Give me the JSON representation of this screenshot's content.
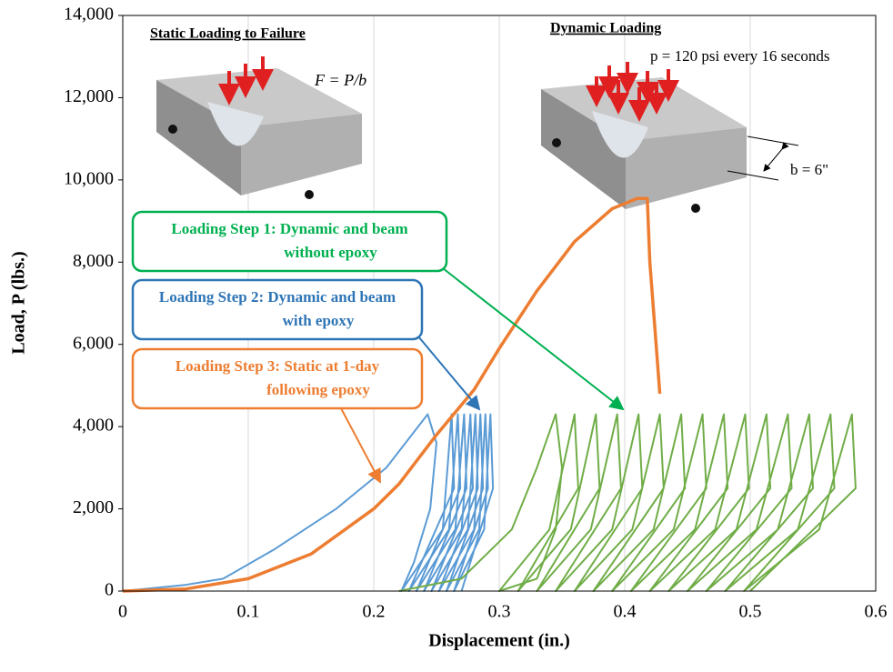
{
  "chart_data": {
    "type": "line",
    "xlabel": "Displacement (in.)",
    "ylabel": "Load, P (lbs.)",
    "xlim": [
      0,
      0.6
    ],
    "xticks": [
      0,
      0.1,
      0.2,
      0.3,
      0.4,
      0.5,
      0.6
    ],
    "ylim": [
      0,
      14000
    ],
    "yticks": [
      0,
      {
        "value": 2000,
        "label": "2,000"
      },
      {
        "value": 4000,
        "label": "4,000"
      },
      {
        "value": 6000,
        "label": "6,000"
      },
      {
        "value": 8000,
        "label": "8,000"
      },
      {
        "value": 10000,
        "label": "10,000"
      },
      {
        "value": 12000,
        "label": "12,000"
      },
      {
        "value": 14000,
        "label": "14,000"
      }
    ],
    "grid": "x",
    "series": [
      {
        "color": "#5b9bd5",
        "x": [
          0,
          0.05,
          0.08,
          0.12,
          0.17,
          0.21,
          0.243,
          0.25,
          0.245,
          0.232,
          0.222,
          0.255,
          0.262,
          0.264,
          0.228,
          0.26,
          0.267,
          0.269,
          0.234,
          0.265,
          0.272,
          0.274,
          0.24,
          0.27,
          0.277,
          0.279,
          0.246,
          0.275,
          0.281,
          0.283,
          0.252,
          0.28,
          0.285,
          0.287,
          0.258,
          0.284,
          0.289,
          0.291,
          0.264,
          0.288,
          0.293,
          0.295,
          0.27
        ],
        "values": [
          0,
          150,
          300,
          1000,
          2000,
          3000,
          4300,
          3600,
          2000,
          700,
          0,
          1500,
          4300,
          2500,
          0,
          1500,
          4300,
          2500,
          0,
          1500,
          4300,
          2500,
          0,
          1500,
          4300,
          2500,
          0,
          1500,
          4300,
          2500,
          0,
          1500,
          4300,
          2500,
          0,
          1500,
          4300,
          2500,
          0,
          1500,
          4300,
          2500,
          0
        ]
      },
      {
        "color": "#70ad47",
        "x": [
          0.22,
          0.27,
          0.31,
          0.33,
          0.345,
          0.35,
          0.345,
          0.33,
          0.3,
          0.34,
          0.36,
          0.363,
          0.315,
          0.357,
          0.377,
          0.38,
          0.33,
          0.373,
          0.394,
          0.397,
          0.345,
          0.39,
          0.411,
          0.414,
          0.36,
          0.406,
          0.428,
          0.431,
          0.375,
          0.423,
          0.445,
          0.448,
          0.39,
          0.439,
          0.462,
          0.465,
          0.405,
          0.456,
          0.479,
          0.482,
          0.42,
          0.472,
          0.496,
          0.499,
          0.435,
          0.489,
          0.513,
          0.516,
          0.45,
          0.505,
          0.53,
          0.533,
          0.465,
          0.522,
          0.547,
          0.55,
          0.48,
          0.538,
          0.564,
          0.567,
          0.495,
          0.555,
          0.581,
          0.584,
          0.5
        ],
        "values": [
          0,
          300,
          1500,
          3000,
          4300,
          3000,
          1500,
          300,
          0,
          1500,
          4300,
          2500,
          0,
          1500,
          4300,
          2500,
          0,
          1500,
          4300,
          2500,
          0,
          1500,
          4300,
          2500,
          0,
          1500,
          4300,
          2500,
          0,
          1500,
          4300,
          2500,
          0,
          1500,
          4300,
          2500,
          0,
          1500,
          4300,
          2500,
          0,
          1500,
          4300,
          2500,
          0,
          1500,
          4300,
          2500,
          0,
          1500,
          4300,
          2500,
          0,
          1500,
          4300,
          2500,
          0,
          1500,
          4300,
          2500,
          0,
          1500,
          4300,
          2500,
          0
        ]
      },
      {
        "color": "#ed7d31",
        "x": [
          0,
          0.05,
          0.1,
          0.15,
          0.2,
          0.22,
          0.25,
          0.28,
          0.3,
          0.33,
          0.36,
          0.39,
          0.41,
          0.418,
          0.42,
          0.425,
          0.428
        ],
        "values": [
          0,
          50,
          300,
          900,
          2000,
          2600,
          3800,
          4900,
          5900,
          7300,
          8500,
          9300,
          9550,
          9550,
          8000,
          6000,
          4800
        ]
      }
    ],
    "annotations": [
      {
        "lines": [
          "Loading Step 1: Dynamic and beam",
          "without epoxy"
        ],
        "color": "#00b050"
      },
      {
        "lines": [
          "Loading Step 2: Dynamic and beam",
          "with epoxy"
        ],
        "color": "#2e75b6"
      },
      {
        "lines": [
          "Loading Step 3: Static at 1-day",
          "following epoxy"
        ],
        "color": "#ed7d31"
      }
    ],
    "figure_labels": [
      "Static Loading to Failure",
      "Dynamic Loading",
      "F = P/b",
      "p = 120 psi every 16 seconds",
      "b = 6\""
    ]
  }
}
